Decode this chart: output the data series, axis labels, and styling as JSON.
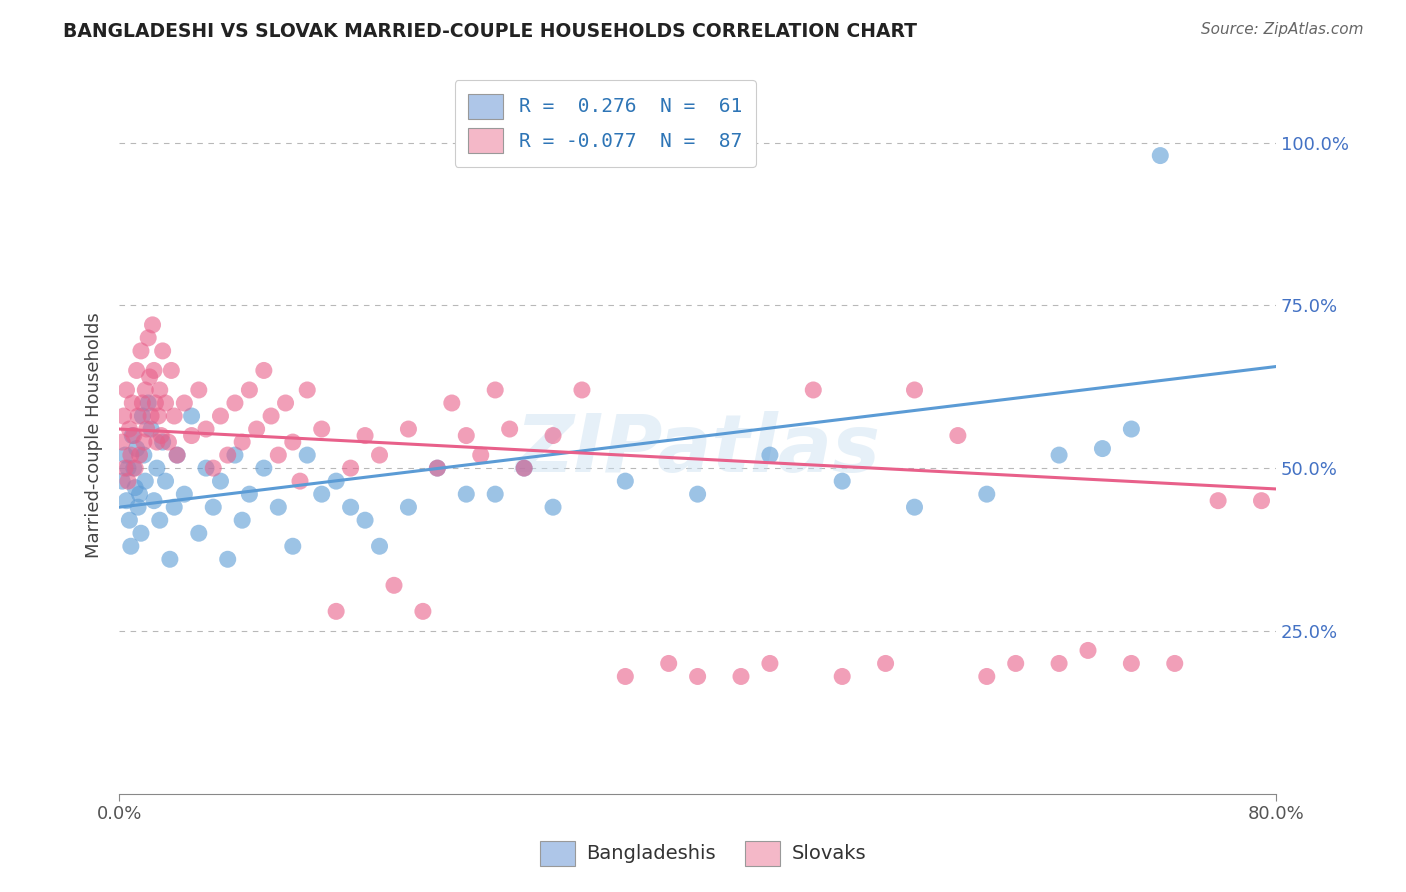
{
  "title": "BANGLADESHI VS SLOVAK MARRIED-COUPLE HOUSEHOLDS CORRELATION CHART",
  "source": "Source: ZipAtlas.com",
  "ylabel": "Married-couple Households",
  "legend_bottom": [
    "Bangladeshis",
    "Slovaks"
  ],
  "blue_color": "#5b9bd5",
  "pink_color": "#e8608a",
  "blue_fill": "#aec6e8",
  "pink_fill": "#f4b8c8",
  "background_color": "#ffffff",
  "grid_color": "#b8b8b8",
  "watermark": "ZIPatlas",
  "xmin": 0,
  "xmax": 80,
  "ymin": 0,
  "ymax": 110,
  "blue_line_intercept": 44.0,
  "blue_line_slope": 0.27,
  "pink_line_intercept": 56.0,
  "pink_line_slope": -0.115,
  "blue_scatter": [
    [
      0.2,
      48
    ],
    [
      0.4,
      52
    ],
    [
      0.5,
      45
    ],
    [
      0.6,
      50
    ],
    [
      0.7,
      42
    ],
    [
      0.8,
      38
    ],
    [
      0.9,
      55
    ],
    [
      1.0,
      50
    ],
    [
      1.1,
      47
    ],
    [
      1.2,
      53
    ],
    [
      1.3,
      44
    ],
    [
      1.4,
      46
    ],
    [
      1.5,
      40
    ],
    [
      1.6,
      58
    ],
    [
      1.7,
      52
    ],
    [
      1.8,
      48
    ],
    [
      2.0,
      60
    ],
    [
      2.2,
      56
    ],
    [
      2.4,
      45
    ],
    [
      2.6,
      50
    ],
    [
      2.8,
      42
    ],
    [
      3.0,
      54
    ],
    [
      3.2,
      48
    ],
    [
      3.5,
      36
    ],
    [
      3.8,
      44
    ],
    [
      4.0,
      52
    ],
    [
      4.5,
      46
    ],
    [
      5.0,
      58
    ],
    [
      5.5,
      40
    ],
    [
      6.0,
      50
    ],
    [
      6.5,
      44
    ],
    [
      7.0,
      48
    ],
    [
      7.5,
      36
    ],
    [
      8.0,
      52
    ],
    [
      8.5,
      42
    ],
    [
      9.0,
      46
    ],
    [
      10.0,
      50
    ],
    [
      11.0,
      44
    ],
    [
      12.0,
      38
    ],
    [
      13.0,
      52
    ],
    [
      14.0,
      46
    ],
    [
      15.0,
      48
    ],
    [
      16.0,
      44
    ],
    [
      17.0,
      42
    ],
    [
      18.0,
      38
    ],
    [
      20.0,
      44
    ],
    [
      22.0,
      50
    ],
    [
      24.0,
      46
    ],
    [
      26.0,
      46
    ],
    [
      28.0,
      50
    ],
    [
      30.0,
      44
    ],
    [
      35.0,
      48
    ],
    [
      40.0,
      46
    ],
    [
      45.0,
      52
    ],
    [
      50.0,
      48
    ],
    [
      55.0,
      44
    ],
    [
      60.0,
      46
    ],
    [
      65.0,
      52
    ],
    [
      68.0,
      53
    ],
    [
      70.0,
      56
    ],
    [
      72.0,
      98
    ]
  ],
  "pink_scatter": [
    [
      0.2,
      54
    ],
    [
      0.3,
      58
    ],
    [
      0.4,
      50
    ],
    [
      0.5,
      62
    ],
    [
      0.6,
      48
    ],
    [
      0.7,
      56
    ],
    [
      0.8,
      52
    ],
    [
      0.9,
      60
    ],
    [
      1.0,
      55
    ],
    [
      1.1,
      50
    ],
    [
      1.2,
      65
    ],
    [
      1.3,
      58
    ],
    [
      1.4,
      52
    ],
    [
      1.5,
      68
    ],
    [
      1.6,
      60
    ],
    [
      1.7,
      54
    ],
    [
      1.8,
      62
    ],
    [
      1.9,
      56
    ],
    [
      2.0,
      70
    ],
    [
      2.1,
      64
    ],
    [
      2.2,
      58
    ],
    [
      2.3,
      72
    ],
    [
      2.4,
      65
    ],
    [
      2.5,
      60
    ],
    [
      2.6,
      54
    ],
    [
      2.7,
      58
    ],
    [
      2.8,
      62
    ],
    [
      2.9,
      55
    ],
    [
      3.0,
      68
    ],
    [
      3.2,
      60
    ],
    [
      3.4,
      54
    ],
    [
      3.6,
      65
    ],
    [
      3.8,
      58
    ],
    [
      4.0,
      52
    ],
    [
      4.5,
      60
    ],
    [
      5.0,
      55
    ],
    [
      5.5,
      62
    ],
    [
      6.0,
      56
    ],
    [
      6.5,
      50
    ],
    [
      7.0,
      58
    ],
    [
      7.5,
      52
    ],
    [
      8.0,
      60
    ],
    [
      8.5,
      54
    ],
    [
      9.0,
      62
    ],
    [
      9.5,
      56
    ],
    [
      10.0,
      65
    ],
    [
      10.5,
      58
    ],
    [
      11.0,
      52
    ],
    [
      11.5,
      60
    ],
    [
      12.0,
      54
    ],
    [
      12.5,
      48
    ],
    [
      13.0,
      62
    ],
    [
      14.0,
      56
    ],
    [
      15.0,
      28
    ],
    [
      16.0,
      50
    ],
    [
      17.0,
      55
    ],
    [
      18.0,
      52
    ],
    [
      19.0,
      32
    ],
    [
      20.0,
      56
    ],
    [
      21.0,
      28
    ],
    [
      22.0,
      50
    ],
    [
      23.0,
      60
    ],
    [
      24.0,
      55
    ],
    [
      25.0,
      52
    ],
    [
      26.0,
      62
    ],
    [
      27.0,
      56
    ],
    [
      28.0,
      50
    ],
    [
      30.0,
      55
    ],
    [
      32.0,
      62
    ],
    [
      35.0,
      18
    ],
    [
      38.0,
      20
    ],
    [
      40.0,
      18
    ],
    [
      43.0,
      18
    ],
    [
      45.0,
      20
    ],
    [
      48.0,
      62
    ],
    [
      50.0,
      18
    ],
    [
      53.0,
      20
    ],
    [
      55.0,
      62
    ],
    [
      58.0,
      55
    ],
    [
      60.0,
      18
    ],
    [
      62.0,
      20
    ],
    [
      65.0,
      20
    ],
    [
      67.0,
      22
    ],
    [
      70.0,
      20
    ],
    [
      73.0,
      20
    ],
    [
      76.0,
      45
    ],
    [
      79.0,
      45
    ]
  ]
}
